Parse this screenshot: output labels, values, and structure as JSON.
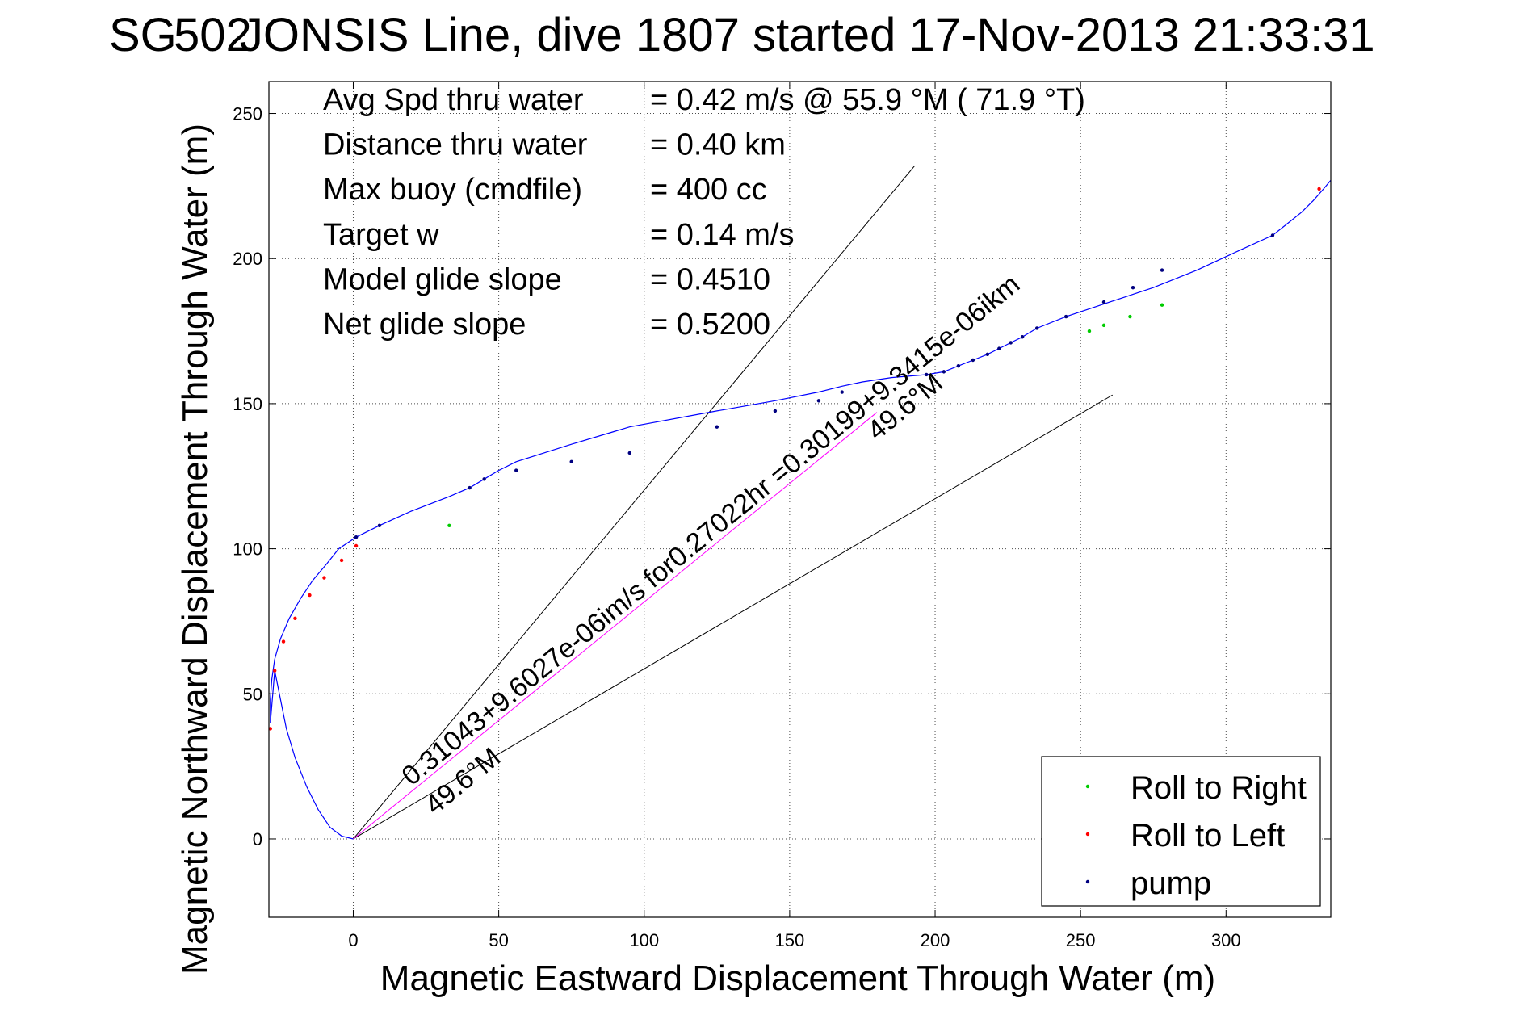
{
  "chart_data": {
    "type": "line",
    "title": "SG502 JONSIS Line, dive 1807 started 17-Nov-2013 21:33:31",
    "title_prefix": "SG",
    "title_overlap_digits": "502",
    "title_rest": " JONSIS Line, dive 1807 started 17-Nov-2013 21:33:31",
    "xlabel": "Magnetic Eastward Displacement Through Water (m)",
    "ylabel": "Magnetic Northward Displacement Through Water (m)",
    "xlim": [
      -29,
      336
    ],
    "ylim": [
      -27,
      261
    ],
    "xticks": [
      0,
      50,
      100,
      150,
      200,
      250,
      300
    ],
    "yticks": [
      0,
      50,
      100,
      150,
      200,
      250
    ],
    "grid": true,
    "stats": [
      {
        "label": "Avg Spd thru water",
        "value": "=  0.42 m/s @  55.9 °M ( 71.9 °T)"
      },
      {
        "label": "Distance thru water",
        "value": "=  0.40 km"
      },
      {
        "label": "Max buoy (cmdfile)",
        "value": "= 400 cc"
      },
      {
        "label": "Target w",
        "value": "= 0.14 m/s"
      },
      {
        "label": "Model glide slope",
        "value": "= 0.4510"
      },
      {
        "label": "Net glide slope",
        "value": "= 0.5200"
      }
    ],
    "legend": {
      "position": "bottom-right",
      "items": [
        {
          "label": "Roll to Right",
          "color": "#00cc00"
        },
        {
          "label": "Roll to Left",
          "color": "#ff0000"
        },
        {
          "label": "pump",
          "color": "#000080"
        }
      ]
    },
    "series": [
      {
        "name": "track",
        "color": "#0000ff",
        "x": [
          0,
          -4,
          -8,
          -12,
          -16,
          -20,
          -23,
          -25,
          -27,
          -28.5,
          -28.5,
          -28,
          -27,
          -25,
          -22,
          -18,
          -14,
          -9,
          -5,
          1,
          9,
          20,
          33,
          40,
          45,
          50,
          56,
          75,
          95,
          125,
          145,
          160,
          168,
          175,
          185,
          197,
          203,
          208,
          213,
          218,
          222,
          226,
          230,
          235,
          245,
          260,
          275,
          290,
          305,
          316,
          321,
          326,
          330,
          333.5,
          336
        ],
        "y": [
          0,
          1,
          4,
          10,
          18,
          28,
          38,
          48,
          58,
          40,
          48,
          55,
          62,
          69,
          76,
          83,
          89,
          95,
          100,
          104,
          108,
          113,
          118,
          121,
          124,
          127,
          130,
          136,
          142,
          147.5,
          151,
          154,
          156,
          157.5,
          159,
          160,
          161,
          163,
          165,
          167,
          169,
          171,
          173,
          176,
          180,
          185,
          190,
          196,
          203,
          208,
          212,
          216,
          220,
          224,
          227
        ]
      }
    ],
    "roll_right_points": {
      "x": [
        33,
        253,
        258,
        267,
        278
      ],
      "y": [
        108,
        175,
        177,
        180,
        184
      ]
    },
    "roll_left_points": {
      "x": [
        -28.5,
        -27,
        -24,
        -20,
        -15,
        -10,
        -4,
        1,
        332
      ],
      "y": [
        38,
        58,
        68,
        76,
        84,
        90,
        96,
        101,
        224
      ]
    },
    "pump_points": {
      "x": [
        1,
        9,
        40,
        45,
        56,
        75,
        95,
        125,
        145,
        160,
        168,
        197,
        203,
        208,
        213,
        218,
        222,
        226,
        230,
        235,
        245,
        258,
        268,
        278,
        316
      ],
      "y": [
        104,
        108,
        121,
        124,
        127,
        130,
        133,
        142,
        147.5,
        151,
        154,
        160,
        161,
        163,
        165,
        167,
        169,
        171,
        173,
        176,
        180,
        185,
        190,
        196,
        208
      ]
    },
    "reference_lines": [
      {
        "x": [
          0,
          193
        ],
        "y": [
          0,
          232
        ],
        "color": "#000000"
      },
      {
        "x": [
          0,
          261
        ],
        "y": [
          0,
          153
        ],
        "color": "#000000"
      },
      {
        "x": [
          0,
          180
        ],
        "y": [
          0,
          147
        ],
        "color": "#ff00ff"
      }
    ],
    "annotations": [
      {
        "text": "0.31043+9.6027e-06im/s for0.27022hr =0.30199+9.3415e-06ikm",
        "x": 20,
        "y": 18,
        "angle": 39.3
      },
      {
        "text": "49.6°M",
        "x": 28,
        "y": 8,
        "angle": 39.3
      },
      {
        "text": "49.6°M",
        "x": 180,
        "y": 137,
        "angle": 39.3
      }
    ]
  }
}
